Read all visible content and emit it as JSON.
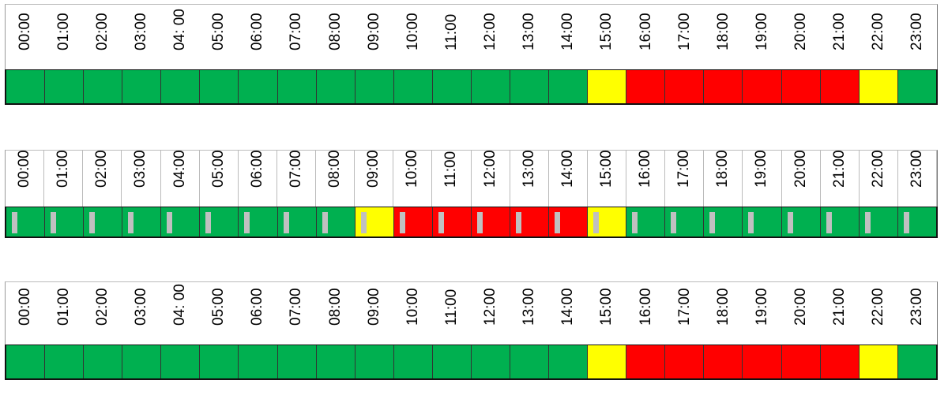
{
  "colors": {
    "G": "#00b050",
    "Y": "#ffff00",
    "R": "#ff0000",
    "marker": "#c0c0c0"
  },
  "timelines": [
    {
      "labels": [
        "00:00",
        "01:00",
        "02:00",
        "03:00",
        "04: 00",
        "05:00",
        "06:00",
        "07:00",
        "08:00",
        "09:00",
        "10:00",
        "11:00",
        "12:00",
        "13:00",
        "14:00",
        "15:00",
        "16:00",
        "17:00",
        "18:00",
        "19:00",
        "20:00",
        "21:00",
        "22:00",
        "23:00"
      ],
      "status": [
        "G",
        "G",
        "G",
        "G",
        "G",
        "G",
        "G",
        "G",
        "G",
        "G",
        "G",
        "G",
        "G",
        "G",
        "G",
        "Y",
        "R",
        "R",
        "R",
        "R",
        "R",
        "R",
        "Y",
        "G"
      ],
      "markers": false
    },
    {
      "labels": [
        "00:00",
        "01:00",
        "02:00",
        "03:00",
        "04:00",
        "05:00",
        "06:00",
        "07:00",
        "08:00",
        "09:00",
        "10:00",
        "11:00",
        "12:00",
        "13:00",
        "14:00",
        "15:00",
        "16:00",
        "17:00",
        "18:00",
        "19:00",
        "20:00",
        "21:00",
        "22:00",
        "23:00"
      ],
      "status": [
        "G",
        "G",
        "G",
        "G",
        "G",
        "G",
        "G",
        "G",
        "G",
        "Y",
        "R",
        "R",
        "R",
        "R",
        "R",
        "Y",
        "G",
        "G",
        "G",
        "G",
        "G",
        "G",
        "G",
        "G"
      ],
      "markers": true
    },
    {
      "labels": [
        "00:00",
        "01:00",
        "02:00",
        "03:00",
        "04: 00",
        "05:00",
        "06:00",
        "07:00",
        "08:00",
        "09:00",
        "10:00",
        "11:00",
        "12:00",
        "13:00",
        "14:00",
        "15:00",
        "16:00",
        "17:00",
        "18:00",
        "19:00",
        "20:00",
        "21:00",
        "22:00",
        "23:00"
      ],
      "status": [
        "G",
        "G",
        "G",
        "G",
        "G",
        "G",
        "G",
        "G",
        "G",
        "G",
        "G",
        "G",
        "G",
        "G",
        "G",
        "Y",
        "R",
        "R",
        "R",
        "R",
        "R",
        "R",
        "Y",
        "G"
      ],
      "markers": false
    }
  ]
}
